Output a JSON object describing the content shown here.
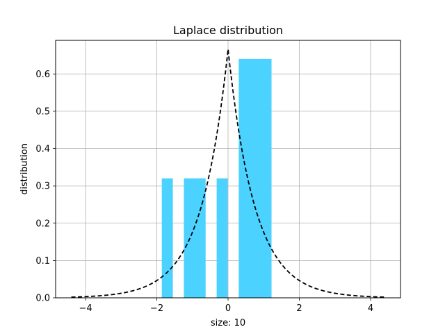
{
  "chart_data": {
    "type": "bar",
    "title": "Laplace distribution",
    "xlabel": "size: 10",
    "ylabel": "distribution",
    "xlim": [
      -4.84,
      4.84
    ],
    "ylim": [
      0,
      0.69
    ],
    "xticks": [
      -4,
      -2,
      0,
      2,
      4
    ],
    "xtick_labels": [
      "−4",
      "−2",
      "0",
      "2",
      "4"
    ],
    "yticks": [
      0.0,
      0.1,
      0.2,
      0.3,
      0.4,
      0.5,
      0.6
    ],
    "ytick_labels": [
      "0.0",
      "0.1",
      "0.2",
      "0.3",
      "0.4",
      "0.5",
      "0.6"
    ],
    "grid": true,
    "bar_color": "#4cd2ff",
    "bars": [
      {
        "x_start": -1.86,
        "x_end": -1.55,
        "value": 0.32
      },
      {
        "x_start": -1.24,
        "x_end": -0.63,
        "value": 0.32
      },
      {
        "x_start": -0.32,
        "x_end": -0.01,
        "value": 0.32
      },
      {
        "x_start": 0.3,
        "x_end": 1.22,
        "value": 0.64
      }
    ],
    "curve": {
      "style": "dashed",
      "color": "#000000",
      "function": "laplace_pdf",
      "loc": 0,
      "scale": 0.75,
      "x_range": [
        -4.4,
        4.4
      ]
    }
  }
}
